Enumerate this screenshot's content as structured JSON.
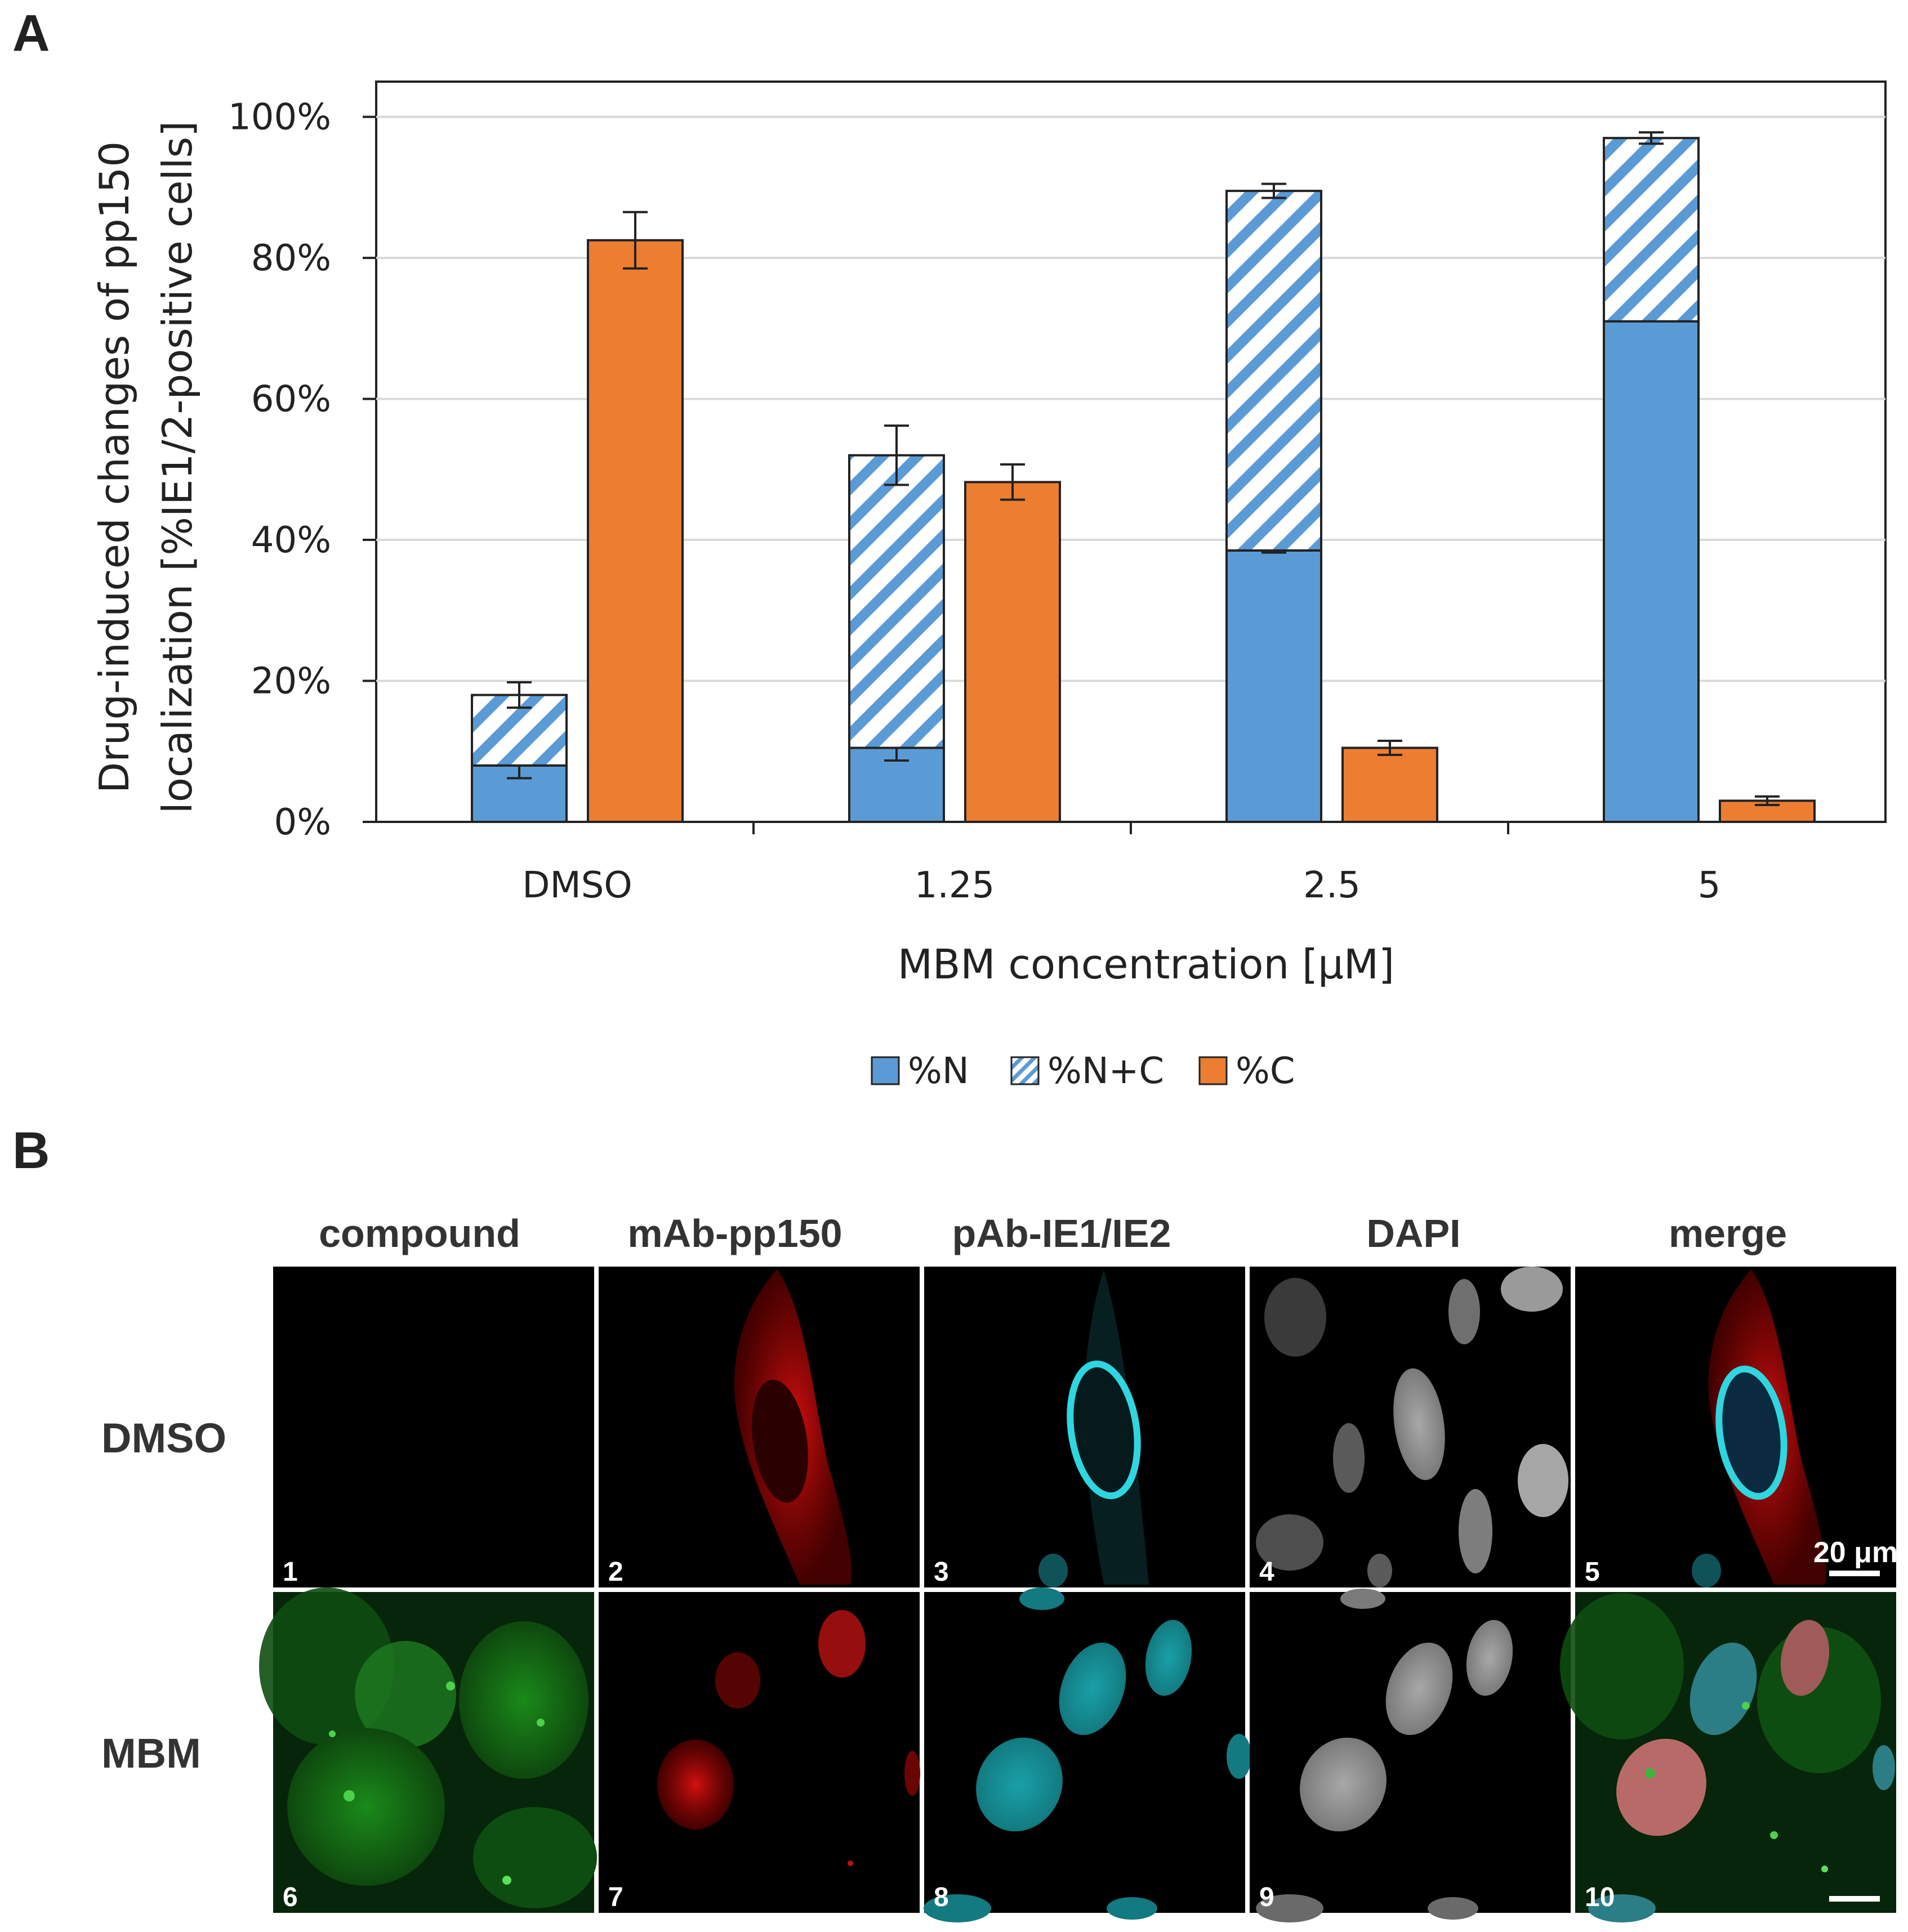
{
  "panel_a_label": "A",
  "panel_b_label": "B",
  "chart_data": {
    "type": "bar",
    "stacked_groups": true,
    "categories": [
      "DMSO",
      "1.25",
      "2.5",
      "5"
    ],
    "series": [
      {
        "name": "%N",
        "stack": "nuclear",
        "color": "#5B9BD5",
        "pattern": "solid",
        "values": [
          8,
          10.5,
          38.5,
          71
        ],
        "errors": [
          1.8,
          1.8,
          0.3,
          0
        ]
      },
      {
        "name": "%N+C",
        "stack": "nuclear",
        "color": "#5B9BD5",
        "pattern": "hatched",
        "values": [
          10,
          41.5,
          51,
          26
        ],
        "errors": [
          1.8,
          4.2,
          1.0,
          0.8
        ]
      },
      {
        "name": "%C",
        "stack": "cytoplasmic",
        "color": "#ED7D31",
        "pattern": "solid",
        "values": [
          82.5,
          48.2,
          10.5,
          3
        ],
        "errors": [
          4.0,
          2.5,
          1.0,
          0.6
        ]
      }
    ],
    "ylim": [
      0,
      105
    ],
    "yticks": [
      "0%",
      "20%",
      "40%",
      "60%",
      "80%",
      "100%"
    ],
    "ytick_values": [
      0,
      20,
      40,
      60,
      80,
      100
    ],
    "ylabel_lines": [
      "Drug-induced changes of pp150",
      "localization [%IE1/2-positive cells]"
    ],
    "xlabel": "MBM concentration [μM]",
    "legend": [
      "%N",
      "%N+C",
      "%C"
    ],
    "legend_position": "bottom-center",
    "grid": true
  },
  "micrographs": {
    "columns": [
      "compound",
      "mAb-pp150",
      "pAb-IE1/IE2",
      "DAPI",
      "merge"
    ],
    "rows": [
      "DMSO",
      "MBM"
    ],
    "panel_numbers": [
      "1",
      "2",
      "3",
      "4",
      "5",
      "6",
      "7",
      "8",
      "9",
      "10"
    ],
    "scale_bar_label": "20 μm"
  }
}
